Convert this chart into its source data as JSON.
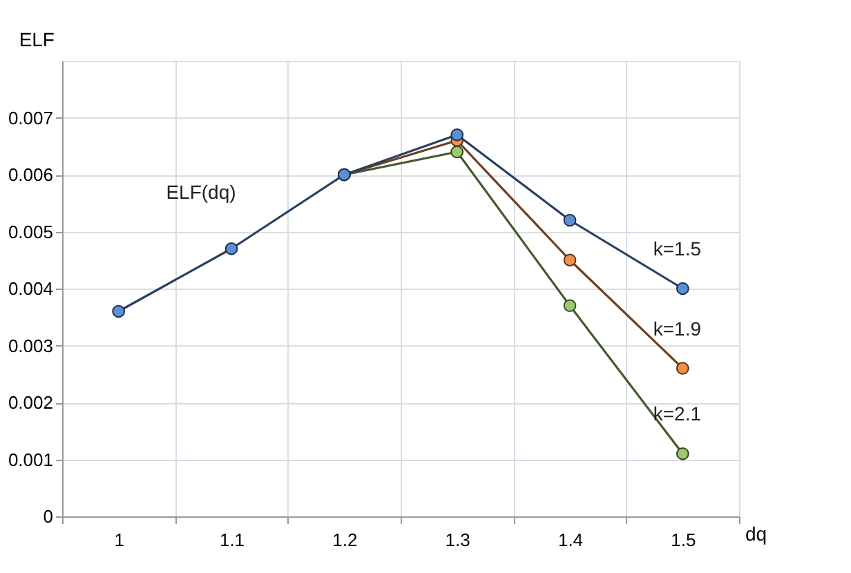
{
  "chart_data": {
    "type": "line",
    "xlabel": "dq",
    "ylabel": "ELF",
    "categories": [
      "1",
      "1.1",
      "1.2",
      "1.3",
      "1.4",
      "1.5"
    ],
    "series": [
      {
        "name": "ELF(dq)",
        "color": "#5b8fd6",
        "values": [
          0.0036,
          0.0047,
          0.006,
          null,
          null,
          null
        ]
      },
      {
        "name": "k=2.1",
        "color": "#9cc96b",
        "values": [
          null,
          null,
          0.006,
          0.0064,
          0.0037,
          0.0011
        ]
      },
      {
        "name": "k=1.9",
        "color": "#f0904a",
        "values": [
          null,
          null,
          0.006,
          0.0066,
          0.0045,
          0.0026
        ]
      },
      {
        "name": "k=1.5",
        "color": "#5b8fd6",
        "values": [
          null,
          null,
          0.006,
          0.0067,
          0.0052,
          0.004
        ]
      }
    ],
    "ylim": [
      0,
      0.008
    ],
    "yticks": [
      0,
      0.001,
      0.002,
      0.003,
      0.004,
      0.005,
      0.006,
      0.007
    ],
    "grid": true,
    "marker": "circle",
    "line_style": "solid"
  }
}
